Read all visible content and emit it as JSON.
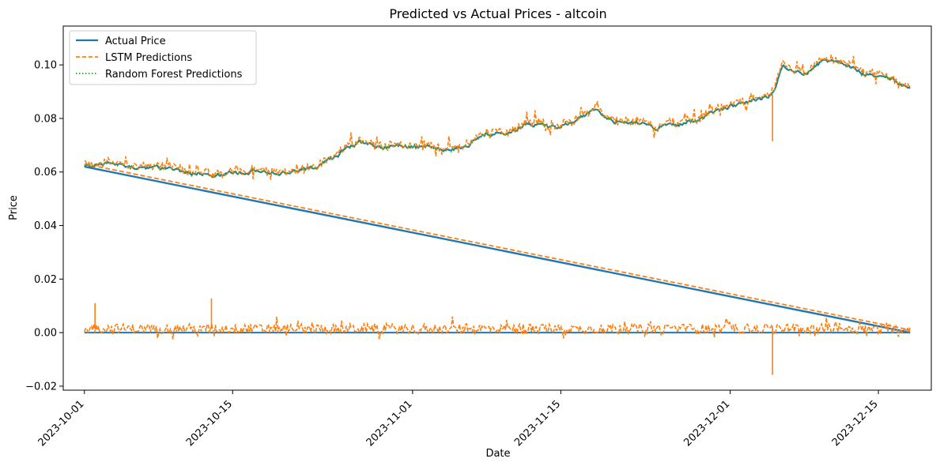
{
  "chart_data": {
    "type": "line",
    "title": "Predicted vs Actual Prices - altcoin",
    "xlabel": "Date",
    "ylabel": "Price",
    "x_tick_labels": [
      "2023-10-01",
      "2023-10-15",
      "2023-11-01",
      "2023-11-15",
      "2023-12-01",
      "2023-12-15"
    ],
    "y_tick_labels": [
      "−0.02",
      "0.00",
      "0.02",
      "0.04",
      "0.06",
      "0.08",
      "0.10"
    ],
    "xlim": [
      "2023-09-29",
      "2023-12-20"
    ],
    "ylim": [
      -0.0215,
      0.1145
    ],
    "grid": false,
    "legend_position": "top-left",
    "series": [
      {
        "name": "Actual Price",
        "color": "#1f77b4",
        "style": "solid",
        "upper_segment": {
          "x": [
            "2023-10-01",
            "2023-10-03",
            "2023-10-05",
            "2023-10-07",
            "2023-10-09",
            "2023-10-11",
            "2023-10-13",
            "2023-10-15",
            "2023-10-17",
            "2023-10-19",
            "2023-10-21",
            "2023-10-23",
            "2023-10-25",
            "2023-10-27",
            "2023-10-29",
            "2023-10-31",
            "2023-11-02",
            "2023-11-04",
            "2023-11-06",
            "2023-11-08",
            "2023-11-10",
            "2023-11-12",
            "2023-11-14",
            "2023-11-16",
            "2023-11-18",
            "2023-11-20",
            "2023-11-22",
            "2023-11-24",
            "2023-11-26",
            "2023-11-28",
            "2023-11-30",
            "2023-12-02",
            "2023-12-04",
            "2023-12-05",
            "2023-12-06",
            "2023-12-08",
            "2023-12-10",
            "2023-12-12",
            "2023-12-14",
            "2023-12-16",
            "2023-12-18"
          ],
          "y": [
            0.062,
            0.0632,
            0.062,
            0.0615,
            0.061,
            0.06,
            0.059,
            0.0595,
            0.06,
            0.0595,
            0.0605,
            0.062,
            0.067,
            0.0715,
            0.069,
            0.0695,
            0.0695,
            0.0685,
            0.0695,
            0.074,
            0.0745,
            0.0785,
            0.0765,
            0.078,
            0.0835,
            0.079,
            0.0785,
            0.0765,
            0.078,
            0.0795,
            0.083,
            0.0855,
            0.087,
            0.089,
            0.1,
            0.096,
            0.102,
            0.1,
            0.096,
            0.0955,
            0.091
          ]
        },
        "descending_segment": {
          "x": [
            "2023-10-01",
            "2023-12-18"
          ],
          "y": [
            0.062,
            0.0
          ]
        },
        "lower_segment": {
          "x": [
            "2023-10-01",
            "2023-12-18"
          ],
          "y": [
            0.0,
            0.0
          ]
        }
      },
      {
        "name": "LSTM Predictions",
        "color": "#ff7f0e",
        "style": "dashed",
        "descending_segment": {
          "x": [
            "2023-10-01",
            "2023-12-18"
          ],
          "y": [
            0.063,
            0.001
          ]
        },
        "lower_band_center": 0.0015,
        "spikes": [
          {
            "x": "2023-12-05",
            "y": -0.0158
          },
          {
            "x": "2023-12-05",
            "y": 0.0715
          },
          {
            "x": "2023-10-13",
            "y": 0.0128
          },
          {
            "x": "2023-10-02",
            "y": 0.011
          }
        ]
      },
      {
        "name": "Random Forest Predictions",
        "color": "#2ca02c",
        "style": "dotted"
      }
    ]
  }
}
